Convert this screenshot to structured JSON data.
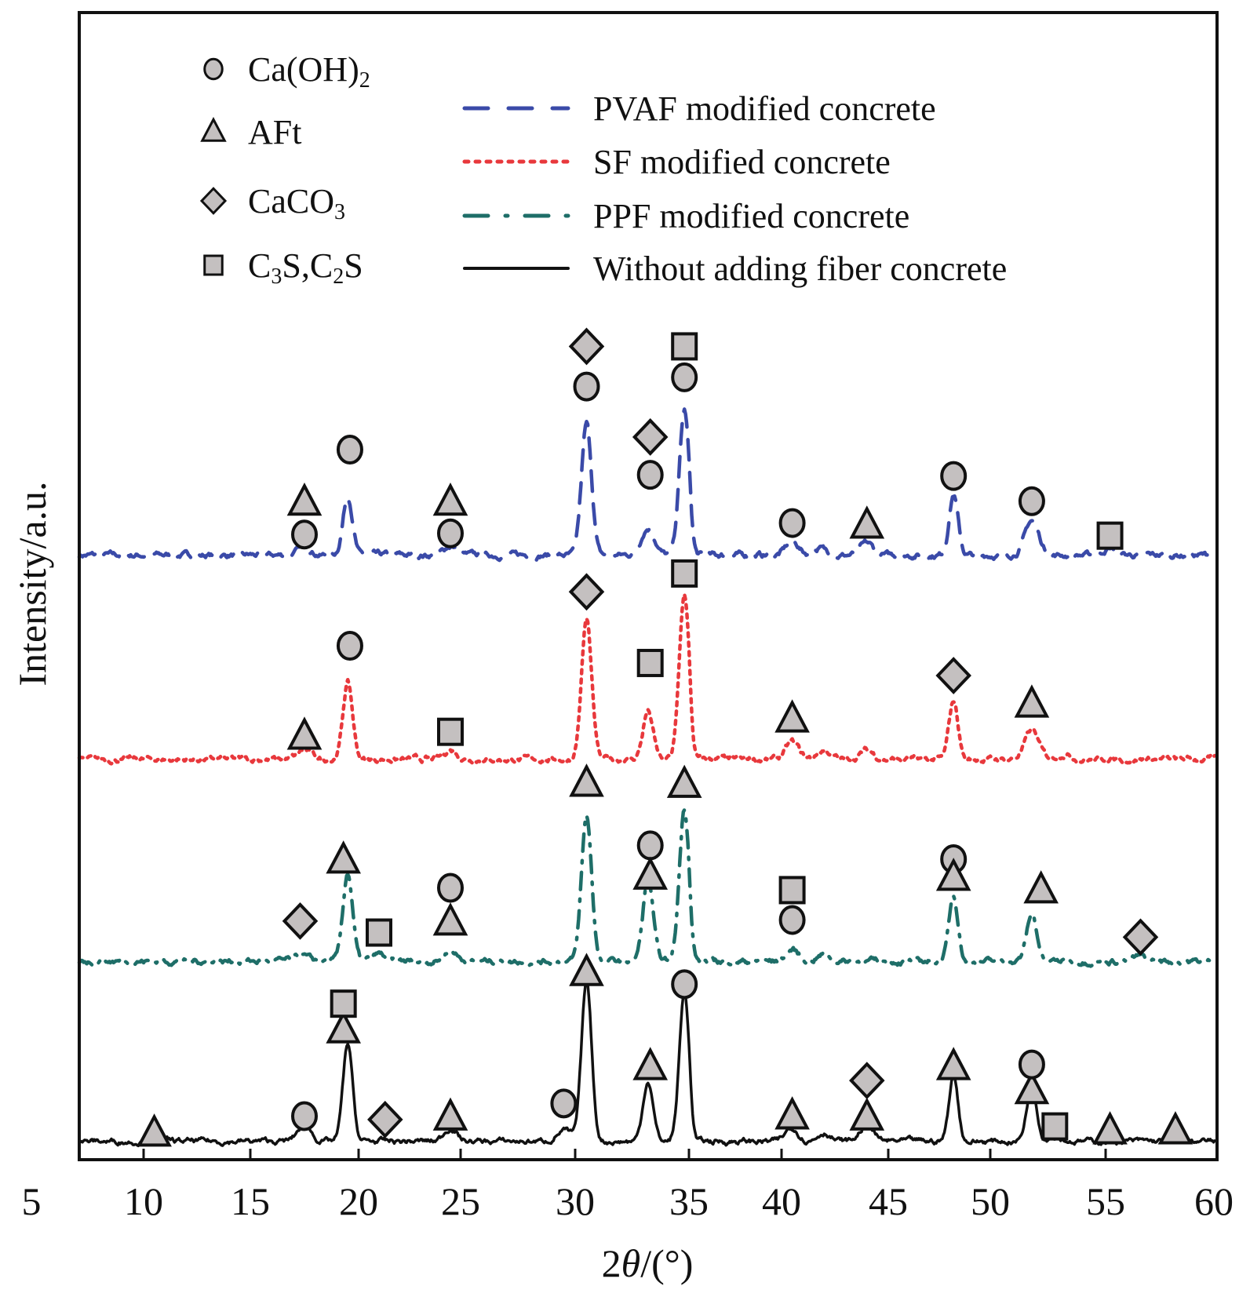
{
  "chart_data": {
    "type": "line",
    "title": "",
    "xlabel_prefix": "2",
    "xlabel_theta": "θ",
    "xlabel_suffix": "/(°)",
    "ylabel": "Intensity/a.u.",
    "xlim": [
      7,
      60
    ],
    "ylim": [
      0,
      1000
    ],
    "x_ticks": [
      5,
      10,
      15,
      20,
      25,
      30,
      35,
      40,
      45,
      50,
      55,
      60
    ],
    "x_tick_labels": [
      "5",
      "10",
      "15",
      "20",
      "25",
      "30",
      "35",
      "40",
      "45",
      "50",
      "55",
      "60"
    ],
    "grid": false,
    "y_ticks_shown": false,
    "phase_legend": [
      {
        "marker": "circle",
        "label_main": "Ca(OH)",
        "label_sub": "2",
        "label_after": ""
      },
      {
        "marker": "triangle",
        "label_main": "AFt",
        "label_sub": "",
        "label_after": ""
      },
      {
        "marker": "diamond",
        "label_main": "CaCO",
        "label_sub": "3",
        "label_after": ""
      },
      {
        "marker": "square",
        "label_main": "C",
        "label_sub": "3",
        "label_after": "S,C",
        "label_sub2": "2",
        "label_end": "S"
      }
    ],
    "marker_fill": "#c4c0c0",
    "marker_stroke": "#111111",
    "series": [
      {
        "name": "PVAF modified concrete",
        "color": "#3a4aa8",
        "style": "dashed",
        "baseline": 527,
        "peaks": [
          [
            17.5,
            8
          ],
          [
            19.5,
            52
          ],
          [
            24.5,
            8
          ],
          [
            30.5,
            114
          ],
          [
            33.2,
            24
          ],
          [
            34.8,
            126
          ],
          [
            40.5,
            12
          ],
          [
            41.8,
            6
          ],
          [
            44.0,
            10
          ],
          [
            48.2,
            53
          ],
          [
            51.8,
            30
          ],
          [
            55.2,
            6
          ]
        ],
        "markers": [
          {
            "phase": "circle",
            "x": 17.5,
            "y": 545
          },
          {
            "phase": "triangle",
            "x": 17.5,
            "y": 573
          },
          {
            "phase": "circle",
            "x": 19.6,
            "y": 619
          },
          {
            "phase": "circle",
            "x": 24.5,
            "y": 546
          },
          {
            "phase": "triangle",
            "x": 24.5,
            "y": 573
          },
          {
            "phase": "circle",
            "x": 30.5,
            "y": 674
          },
          {
            "phase": "diamond",
            "x": 30.5,
            "y": 709
          },
          {
            "phase": "circle",
            "x": 33.3,
            "y": 597
          },
          {
            "phase": "diamond",
            "x": 33.3,
            "y": 630
          },
          {
            "phase": "circle",
            "x": 34.8,
            "y": 682
          },
          {
            "phase": "square",
            "x": 34.8,
            "y": 709
          },
          {
            "phase": "circle",
            "x": 40.5,
            "y": 555
          },
          {
            "phase": "triangle",
            "x": 44.0,
            "y": 553
          },
          {
            "phase": "circle",
            "x": 48.2,
            "y": 596
          },
          {
            "phase": "circle",
            "x": 51.8,
            "y": 574
          },
          {
            "phase": "square",
            "x": 55.2,
            "y": 544
          }
        ]
      },
      {
        "name": "SF modified concrete",
        "color": "#e8383c",
        "style": "dotted",
        "baseline": 349,
        "peaks": [
          [
            17.5,
            8
          ],
          [
            19.5,
            67
          ],
          [
            24.5,
            8
          ],
          [
            30.5,
            122
          ],
          [
            33.2,
            42
          ],
          [
            34.8,
            144
          ],
          [
            40.5,
            15
          ],
          [
            42.0,
            8
          ],
          [
            44.0,
            8
          ],
          [
            48.2,
            51
          ],
          [
            51.8,
            25
          ],
          [
            53.2,
            5
          ]
        ],
        "markers": [
          {
            "phase": "triangle",
            "x": 17.5,
            "y": 369
          },
          {
            "phase": "circle",
            "x": 19.6,
            "y": 448
          },
          {
            "phase": "square",
            "x": 24.5,
            "y": 373
          },
          {
            "phase": "diamond",
            "x": 30.5,
            "y": 495
          },
          {
            "phase": "square",
            "x": 33.3,
            "y": 433
          },
          {
            "phase": "square",
            "x": 34.8,
            "y": 511
          },
          {
            "phase": "triangle",
            "x": 40.5,
            "y": 384
          },
          {
            "phase": "diamond",
            "x": 48.2,
            "y": 422
          },
          {
            "phase": "triangle",
            "x": 51.8,
            "y": 397
          }
        ]
      },
      {
        "name": "PPF modified concrete",
        "color": "#1e6e68",
        "style": "dashdot",
        "baseline": 173,
        "peaks": [
          [
            17.3,
            6
          ],
          [
            19.5,
            77
          ],
          [
            21.0,
            6
          ],
          [
            24.5,
            10
          ],
          [
            30.5,
            127
          ],
          [
            33.2,
            72
          ],
          [
            34.8,
            133
          ],
          [
            40.5,
            10
          ],
          [
            42.0,
            6
          ],
          [
            48.2,
            58
          ],
          [
            51.8,
            41
          ],
          [
            56.6,
            4
          ]
        ],
        "markers": [
          {
            "phase": "diamond",
            "x": 17.3,
            "y": 208
          },
          {
            "phase": "triangle",
            "x": 19.3,
            "y": 261
          },
          {
            "phase": "square",
            "x": 21.0,
            "y": 198
          },
          {
            "phase": "circle",
            "x": 24.5,
            "y": 237
          },
          {
            "phase": "triangle",
            "x": 24.5,
            "y": 207
          },
          {
            "phase": "triangle",
            "x": 30.5,
            "y": 328
          },
          {
            "phase": "circle",
            "x": 33.3,
            "y": 274
          },
          {
            "phase": "triangle",
            "x": 33.3,
            "y": 247
          },
          {
            "phase": "triangle",
            "x": 34.8,
            "y": 327
          },
          {
            "phase": "square",
            "x": 40.5,
            "y": 235
          },
          {
            "phase": "circle",
            "x": 40.5,
            "y": 209
          },
          {
            "phase": "circle",
            "x": 48.2,
            "y": 262
          },
          {
            "phase": "triangle",
            "x": 48.2,
            "y": 246
          },
          {
            "phase": "triangle",
            "x": 52.2,
            "y": 235
          },
          {
            "phase": "diamond",
            "x": 56.6,
            "y": 194
          }
        ]
      },
      {
        "name": "Without adding fiber concrete",
        "color": "#111111",
        "style": "solid",
        "baseline": 16,
        "peaks": [
          [
            10.5,
            4
          ],
          [
            17.5,
            15
          ],
          [
            19.5,
            85
          ],
          [
            24.5,
            12
          ],
          [
            29.5,
            10
          ],
          [
            30.5,
            139
          ],
          [
            33.2,
            53
          ],
          [
            34.8,
            130
          ],
          [
            40.5,
            12
          ],
          [
            42.0,
            8
          ],
          [
            44.0,
            15
          ],
          [
            48.2,
            58
          ],
          [
            51.8,
            48
          ],
          [
            52.8,
            5
          ]
        ],
        "markers": [
          {
            "phase": "triangle",
            "x": 10.5,
            "y": 23
          },
          {
            "phase": "circle",
            "x": 17.5,
            "y": 38
          },
          {
            "phase": "triangle",
            "x": 19.3,
            "y": 113
          },
          {
            "phase": "square",
            "x": 19.3,
            "y": 136
          },
          {
            "phase": "diamond",
            "x": 21.3,
            "y": 35
          },
          {
            "phase": "triangle",
            "x": 24.5,
            "y": 37
          },
          {
            "phase": "circle",
            "x": 29.5,
            "y": 49
          },
          {
            "phase": "triangle",
            "x": 30.5,
            "y": 163
          },
          {
            "phase": "triangle",
            "x": 33.3,
            "y": 81
          },
          {
            "phase": "circle",
            "x": 34.8,
            "y": 153
          },
          {
            "phase": "triangle",
            "x": 40.5,
            "y": 38
          },
          {
            "phase": "triangle",
            "x": 44.0,
            "y": 37
          },
          {
            "phase": "diamond",
            "x": 44.0,
            "y": 69
          },
          {
            "phase": "triangle",
            "x": 48.2,
            "y": 81
          },
          {
            "phase": "triangle",
            "x": 51.8,
            "y": 60
          },
          {
            "phase": "circle",
            "x": 51.8,
            "y": 83
          },
          {
            "phase": "square",
            "x": 52.8,
            "y": 29
          },
          {
            "phase": "triangle",
            "x": 55.2,
            "y": 25
          },
          {
            "phase": "triangle",
            "x": 58.2,
            "y": 25
          }
        ]
      }
    ]
  }
}
